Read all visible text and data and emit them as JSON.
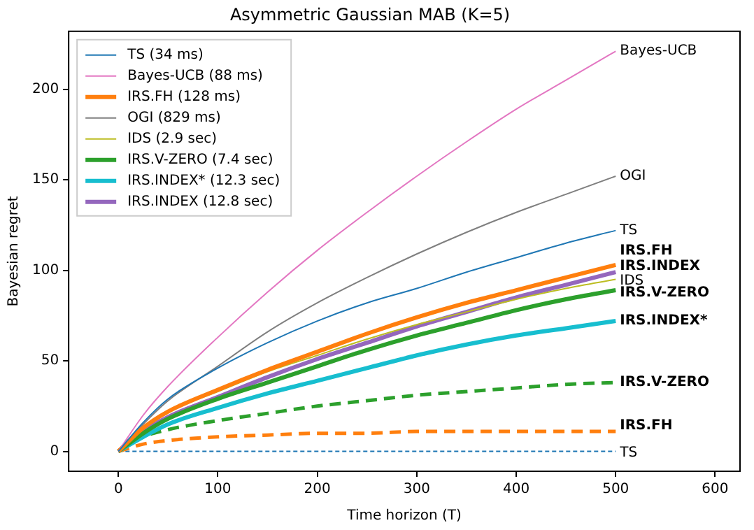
{
  "chart_data": {
    "type": "line",
    "title": "Asymmetric Gaussian MAB (K=5)",
    "xlabel": "Time horizon (T)",
    "ylabel": "Bayesian regret",
    "x": [
      0,
      25,
      50,
      100,
      150,
      200,
      250,
      300,
      350,
      400,
      450,
      500
    ],
    "xlim": [
      -50,
      625
    ],
    "xticks": [
      0,
      100,
      200,
      300,
      400,
      500,
      600
    ],
    "ylim": [
      -11,
      232
    ],
    "yticks": [
      0,
      50,
      100,
      150,
      200
    ],
    "grid": false,
    "legend": "top left",
    "marker": "none",
    "line_style": "solid",
    "series": [
      {
        "name": "TS (34 ms)",
        "color": "#1f77b4",
        "values": [
          0,
          16,
          29,
          46,
          60,
          72,
          82,
          90,
          99,
          107,
          115,
          122
        ]
      },
      {
        "name": "Bayes-UCB (88 ms)",
        "color": "#e377c2",
        "values": [
          0,
          20,
          36,
          63,
          88,
          111,
          132,
          152,
          171,
          189,
          205,
          221
        ]
      },
      {
        "name": "IRS.FH (128 ms)",
        "color": "#ff7f0e",
        "values": [
          0,
          13,
          22,
          34,
          45,
          55,
          65,
          74,
          82,
          89,
          96,
          103
        ]
      },
      {
        "name": "OGI (829 ms)",
        "color": "#7f7f7f",
        "values": [
          0,
          15,
          28,
          47,
          66,
          82,
          96,
          109,
          121,
          132,
          142,
          152
        ]
      },
      {
        "name": "IDS (2.9 sec)",
        "color": "#bcbd22",
        "values": [
          0,
          13,
          22,
          33,
          44,
          53,
          62,
          70,
          77,
          84,
          90,
          95
        ]
      },
      {
        "name": "IRS.V-ZERO (7.4 sec)",
        "color": "#2ca02c",
        "values": [
          0,
          10,
          18,
          29,
          38,
          47,
          56,
          64,
          71,
          78,
          84,
          89
        ]
      },
      {
        "name": "IRS.INDEX* (12.3 sec)",
        "color": "#17becf",
        "values": [
          0,
          8,
          15,
          24,
          32,
          39,
          46,
          53,
          59,
          64,
          68,
          72
        ]
      },
      {
        "name": "IRS.INDEX (12.8 sec)",
        "color": "#9467bd",
        "values": [
          0,
          11,
          19,
          30,
          41,
          51,
          60,
          69,
          77,
          85,
          92,
          99
        ]
      },
      {
        "color": "#2ca02c",
        "line_style": "dashed",
        "values": [
          0,
          8,
          12,
          17,
          21,
          25,
          28,
          31,
          33,
          35,
          37,
          38
        ]
      },
      {
        "color": "#ff7f0e",
        "line_style": "dashed",
        "values": [
          0,
          4,
          6,
          8,
          9,
          10,
          10,
          11,
          11,
          11,
          11,
          11
        ]
      },
      {
        "color": "#1f77b4",
        "line_style": "dotted",
        "values": [
          0,
          0,
          0,
          0,
          0,
          0,
          0,
          0,
          0,
          0,
          0,
          0
        ]
      }
    ],
    "annotations": [
      "Bayes-UCB",
      "OGI",
      "TS",
      "IRS.FH",
      "IRS.INDEX",
      "IDS",
      "IRS.V-ZERO",
      "IRS.INDEX*",
      "IRS.V-ZERO",
      "IRS.FH",
      "TS"
    ]
  }
}
